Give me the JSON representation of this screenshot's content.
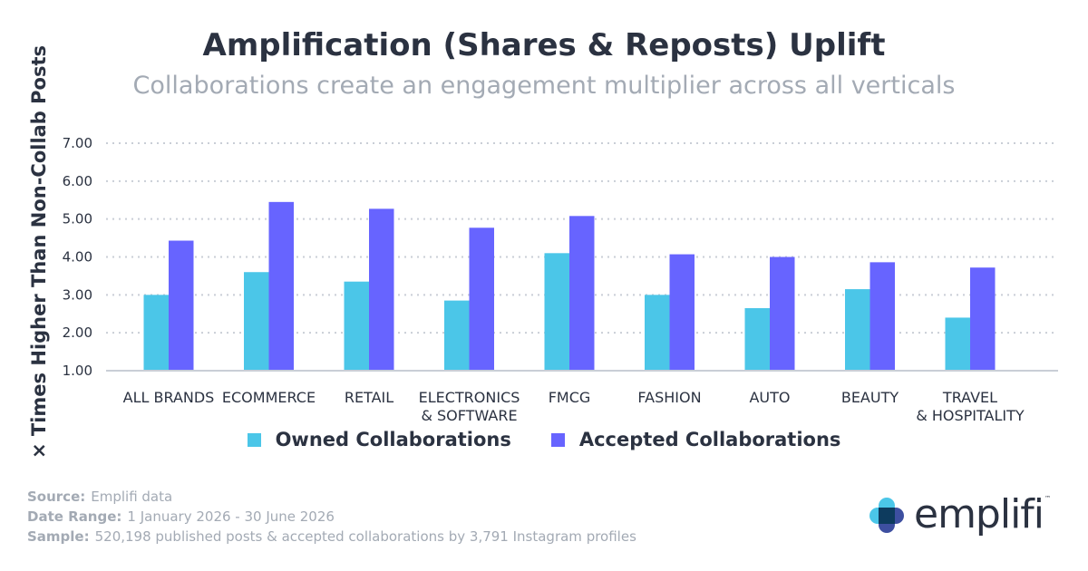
{
  "header": {
    "title": "Amplification (Shares & Reposts) Uplift",
    "subtitle": "Collaborations create an engagement multiplier across all verticals"
  },
  "colors": {
    "owned": "#4bc6e8",
    "accepted": "#6764ff",
    "text": "#2b3241",
    "muted": "#a3aab4",
    "grid": "#c9ced6"
  },
  "chart_data": {
    "type": "bar",
    "ylabel": "× Times Higher Than Non-Collab Posts",
    "xlabel": "",
    "ylim": [
      1,
      7
    ],
    "yticks": [
      "1.00",
      "2.00",
      "3.00",
      "4.00",
      "5.00",
      "6.00",
      "7.00"
    ],
    "grid": true,
    "legend_position": "bottom",
    "categories": [
      "ALL BRANDS",
      "ECOMMERCE",
      "RETAIL",
      "ELECTRONICS\n& SOFTWARE",
      "FMCG",
      "FASHION",
      "AUTO",
      "BEAUTY",
      "TRAVEL\n& HOSPITALITY"
    ],
    "series": [
      {
        "name": "Owned Collaborations",
        "values": [
          3.0,
          3.6,
          3.35,
          2.85,
          4.1,
          3.0,
          2.65,
          3.15,
          2.4
        ]
      },
      {
        "name": "Accepted Collaborations",
        "values": [
          4.43,
          5.45,
          5.27,
          4.77,
          5.08,
          4.07,
          4.0,
          3.86,
          3.72
        ]
      }
    ]
  },
  "footer": {
    "source_label": "Source:",
    "source_value": "Emplifi data",
    "date_label": "Date Range:",
    "date_value": "1 January 2026 - 30 June 2026",
    "sample_label": "Sample:",
    "sample_value": "520,198 published posts & accepted collaborations by 3,791 Instagram profiles"
  },
  "logo": {
    "text": "emplifi",
    "tm": "™"
  }
}
